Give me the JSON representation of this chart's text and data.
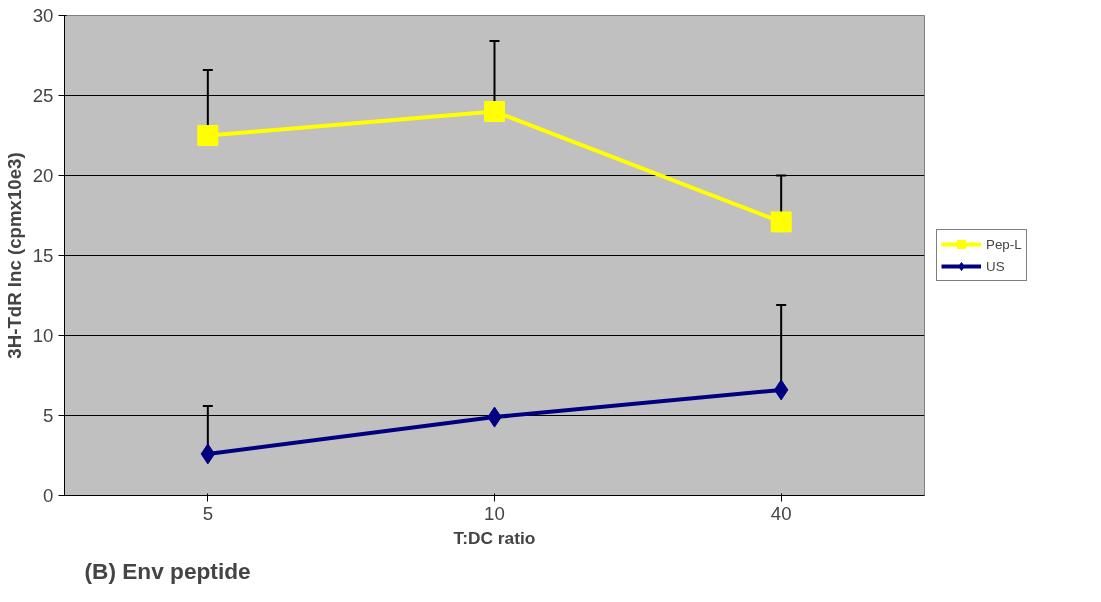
{
  "chart_data": {
    "type": "line",
    "xlabel": "T:DC ratio",
    "ylabel": "3H-TdR Inc (cpmx10e3)",
    "categories": [
      "5",
      "10",
      "40"
    ],
    "series": [
      {
        "name": "Pep-L",
        "color": "#ffff00",
        "marker": "square",
        "values": [
          22.5,
          24.0,
          17.1
        ],
        "errors": [
          [
            22.5,
            26.6
          ],
          [
            24.0,
            28.4
          ],
          [
            17.1,
            20.0
          ]
        ]
      },
      {
        "name": "US",
        "color": "#000080",
        "marker": "diamond",
        "values": [
          2.6,
          4.9,
          6.6
        ],
        "errors": [
          [
            2.6,
            5.6
          ],
          null,
          [
            6.6,
            11.9
          ]
        ]
      }
    ],
    "ylim": [
      0,
      30
    ],
    "yticks": [
      0,
      5,
      10,
      15,
      20,
      25,
      30
    ],
    "grid": "y",
    "legend": "right",
    "annotations": [
      "(B) Env peptide"
    ]
  }
}
